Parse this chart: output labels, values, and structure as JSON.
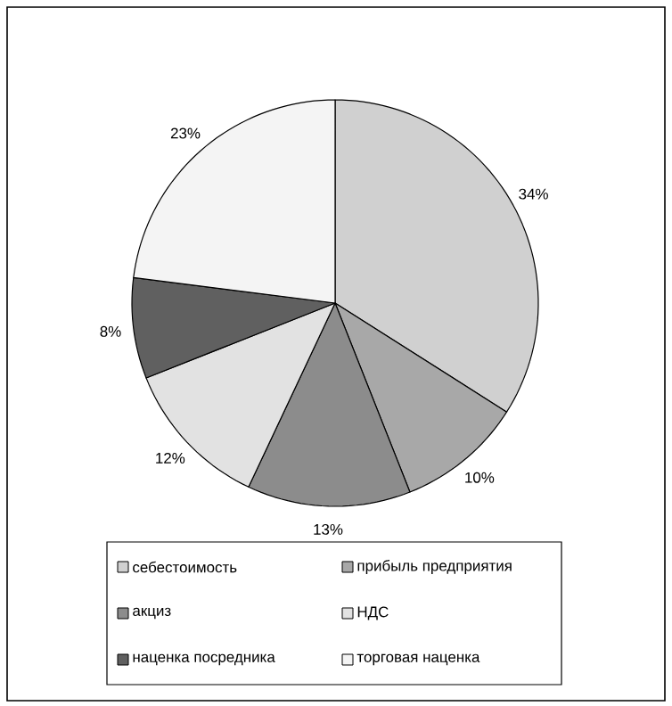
{
  "chart_data": {
    "type": "pie",
    "categories": [
      "себестоимость",
      "прибыль предприятия",
      "акциз",
      "НДС",
      "наценка посредника",
      "торговая наценка"
    ],
    "values": [
      34,
      10,
      13,
      12,
      8,
      23
    ],
    "value_labels": [
      "34%",
      "10%",
      "13%",
      "12%",
      "8%",
      "23%"
    ],
    "colors": [
      "#d0d0d0",
      "#a8a8a8",
      "#8c8c8c",
      "#e2e2e2",
      "#606060",
      "#f4f4f4"
    ],
    "legend": "bottom"
  }
}
